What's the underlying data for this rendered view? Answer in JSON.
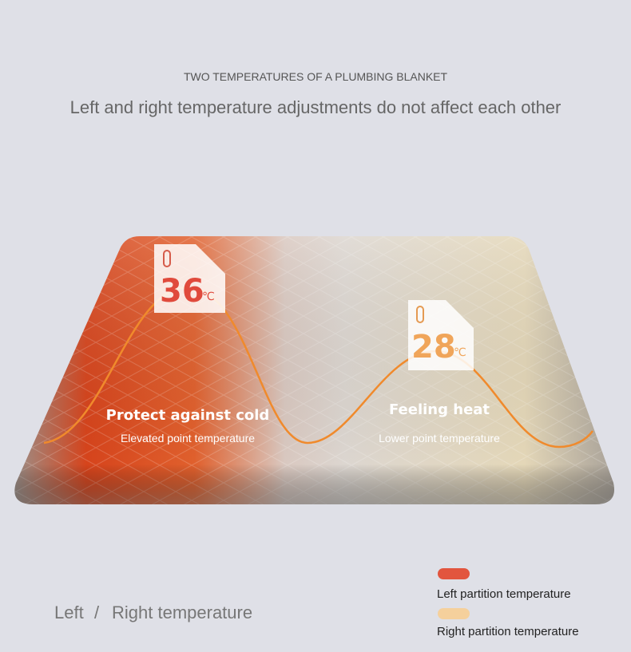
{
  "header": {
    "title": "TWO TEMPERATURES OF A PLUMBING BLANKET",
    "subtitle": "Left and right temperature adjustments do not affect each other"
  },
  "zones": [
    {
      "temperature": 36,
      "unit": "℃",
      "heading": "Protect against cold",
      "caption": "Elevated point temperature"
    },
    {
      "temperature": 28,
      "unit": "℃",
      "heading": "Feeling heat",
      "caption": "Lower point temperature"
    }
  ],
  "footer": {
    "left": "Left",
    "separator": "/",
    "right": "Right temperature"
  },
  "legend": [
    {
      "label": "Left partition temperature"
    },
    {
      "label": "Right partition temperature"
    }
  ]
}
